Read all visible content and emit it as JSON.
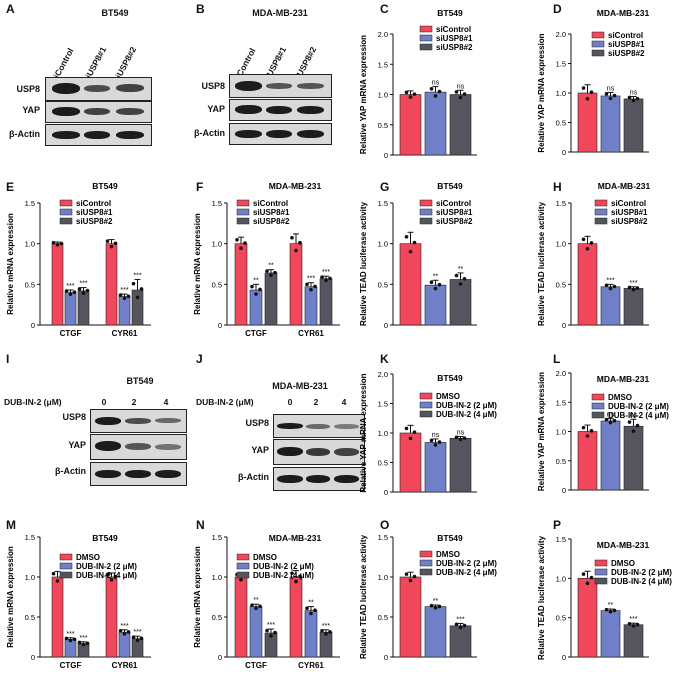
{
  "colors": {
    "red": "#f0475a",
    "blue": "#6f7fc8",
    "gray": "#55555f"
  },
  "letters": {
    "A": "A",
    "B": "B",
    "C": "C",
    "D": "D",
    "E": "E",
    "F": "F",
    "G": "G",
    "H": "H",
    "I": "I",
    "J": "J",
    "K": "K",
    "L": "L",
    "M": "M",
    "N": "N",
    "O": "O",
    "P": "P"
  },
  "blots": {
    "A": {
      "title": "BT549",
      "lanes": [
        "siControl",
        "siUSP8#1",
        "siUSP8#2"
      ],
      "rows": [
        "USP8",
        "YAP",
        "β-Actin"
      ]
    },
    "B": {
      "title": "MDA-MB-231",
      "lanes": [
        "siControl",
        "siUSP8#1",
        "siUSP8#2"
      ],
      "rows": [
        "USP8",
        "YAP",
        "β-Actin"
      ]
    },
    "I": {
      "title": "BT549",
      "treatment": "DUB-IN-2 (μM)",
      "doses": [
        "0",
        "2",
        "4"
      ],
      "rows": [
        "USP8",
        "YAP",
        "β-Actin"
      ]
    },
    "J": {
      "title": "MDA-MB-231",
      "treatment": "DUB-IN-2 (μM)",
      "doses": [
        "0",
        "2",
        "4"
      ],
      "rows": [
        "USP8",
        "YAP",
        "β-Actin"
      ]
    }
  },
  "chart_data": [
    {
      "id": "C",
      "type": "bar",
      "title": "BT549",
      "ylabel": "Relative YAP mRNA expression",
      "ylim": [
        0,
        2.0
      ],
      "yticks": [
        "0",
        "0.5",
        "1.0",
        "1.5",
        "2.0"
      ],
      "tick_values": [
        0,
        0.5,
        1.0,
        1.5,
        2.0
      ],
      "categories": [
        ""
      ],
      "series": [
        {
          "name": "siControl",
          "values": [
            1.0
          ],
          "errors": [
            0.06
          ],
          "sig": [
            ""
          ]
        },
        {
          "name": "siUSP8#1",
          "values": [
            1.04
          ],
          "errors": [
            0.09
          ],
          "sig": [
            "ns"
          ]
        },
        {
          "name": "siUSP8#2",
          "values": [
            1.0
          ],
          "errors": [
            0.07
          ],
          "sig": [
            "ns"
          ]
        }
      ]
    },
    {
      "id": "D",
      "type": "bar",
      "title": "MDA-MB-231",
      "ylabel": "Relative YAP mRNA expression",
      "ylim": [
        0,
        2.0
      ],
      "yticks": [
        "0",
        "0.5",
        "1.0",
        "1.5",
        "2.0"
      ],
      "tick_values": [
        0,
        0.5,
        1.0,
        1.5,
        2.0
      ],
      "categories": [
        ""
      ],
      "series": [
        {
          "name": "siControl",
          "values": [
            1.0
          ],
          "errors": [
            0.14
          ],
          "sig": [
            ""
          ]
        },
        {
          "name": "siUSP8#1",
          "values": [
            0.95
          ],
          "errors": [
            0.06
          ],
          "sig": [
            "ns"
          ]
        },
        {
          "name": "siUSP8#2",
          "values": [
            0.9
          ],
          "errors": [
            0.04
          ],
          "sig": [
            "ns"
          ]
        }
      ]
    },
    {
      "id": "E",
      "type": "bar",
      "title": "BT549",
      "ylabel": "Relative mRNA expression",
      "ylim": [
        0,
        1.5
      ],
      "yticks": [
        "0",
        "0.5",
        "1.0",
        "1.5"
      ],
      "tick_values": [
        0,
        0.5,
        1.0,
        1.5
      ],
      "categories": [
        "CTGF",
        "CYR61"
      ],
      "series": [
        {
          "name": "siControl",
          "values": [
            1.0,
            1.0
          ],
          "errors": [
            0.02,
            0.05
          ],
          "sig": [
            "",
            ""
          ]
        },
        {
          "name": "siUSP8#1",
          "values": [
            0.4,
            0.35
          ],
          "errors": [
            0.03,
            0.03
          ],
          "sig": [
            "***",
            "***"
          ]
        },
        {
          "name": "siUSP8#2",
          "values": [
            0.42,
            0.43
          ],
          "errors": [
            0.04,
            0.13
          ],
          "sig": [
            "***",
            "***"
          ]
        }
      ]
    },
    {
      "id": "F",
      "type": "bar",
      "title": "MDA-MB-231",
      "ylabel": "Relative mRNA expression",
      "ylim": [
        0,
        1.5
      ],
      "yticks": [
        "0",
        "0.5",
        "1.0",
        "1.5"
      ],
      "tick_values": [
        0,
        0.5,
        1.0,
        1.5
      ],
      "categories": [
        "CTGF",
        "CYR61"
      ],
      "series": [
        {
          "name": "siControl",
          "values": [
            1.0,
            1.0
          ],
          "errors": [
            0.08,
            0.12
          ],
          "sig": [
            "",
            ""
          ]
        },
        {
          "name": "siUSP8#1",
          "values": [
            0.43,
            0.47
          ],
          "errors": [
            0.07,
            0.05
          ],
          "sig": [
            "**",
            "***"
          ]
        },
        {
          "name": "siUSP8#2",
          "values": [
            0.64,
            0.57
          ],
          "errors": [
            0.04,
            0.03
          ],
          "sig": [
            "**",
            "***"
          ]
        }
      ]
    },
    {
      "id": "G",
      "type": "bar",
      "title": "BT549",
      "ylabel": "Relative TEAD luciferase activity",
      "ylim": [
        0,
        1.5
      ],
      "yticks": [
        "0",
        "0.5",
        "1.0",
        "1.5"
      ],
      "tick_values": [
        0,
        0.5,
        1.0,
        1.5
      ],
      "categories": [
        ""
      ],
      "series": [
        {
          "name": "siControl",
          "values": [
            1.0
          ],
          "errors": [
            0.14
          ],
          "sig": [
            ""
          ]
        },
        {
          "name": "siUSP8#1",
          "values": [
            0.49
          ],
          "errors": [
            0.06
          ],
          "sig": [
            "**"
          ]
        },
        {
          "name": "siUSP8#2",
          "values": [
            0.56
          ],
          "errors": [
            0.08
          ],
          "sig": [
            "**"
          ]
        }
      ]
    },
    {
      "id": "H",
      "type": "bar",
      "title": "MDA-MB-231",
      "ylabel": "Relative TEAD luciferase activity",
      "ylim": [
        0,
        1.5
      ],
      "yticks": [
        "0",
        "0.5",
        "1.0",
        "1.5"
      ],
      "tick_values": [
        0,
        0.5,
        1.0,
        1.5
      ],
      "categories": [
        ""
      ],
      "series": [
        {
          "name": "siControl",
          "values": [
            1.0
          ],
          "errors": [
            0.09
          ],
          "sig": [
            ""
          ]
        },
        {
          "name": "siUSP8#1",
          "values": [
            0.47
          ],
          "errors": [
            0.03
          ],
          "sig": [
            "***"
          ]
        },
        {
          "name": "siUSP8#2",
          "values": [
            0.45
          ],
          "errors": [
            0.02
          ],
          "sig": [
            "***"
          ]
        }
      ]
    },
    {
      "id": "K",
      "type": "bar",
      "title": "BT549",
      "ylabel": "Relative YAP mRNA expression",
      "ylim": [
        0,
        2.0
      ],
      "yticks": [
        "0",
        "0.5",
        "1.0",
        "1.5",
        "2.0"
      ],
      "tick_values": [
        0,
        0.5,
        1.0,
        1.5,
        2.0
      ],
      "categories": [
        ""
      ],
      "series": [
        {
          "name": "DMSO",
          "values": [
            1.0
          ],
          "errors": [
            0.13
          ],
          "sig": [
            ""
          ]
        },
        {
          "name": "DUB-IN-2 (2 μM)",
          "values": [
            0.84
          ],
          "errors": [
            0.06
          ],
          "sig": [
            "ns"
          ]
        },
        {
          "name": "DUB-IN-2 (4 μM)",
          "values": [
            0.91
          ],
          "errors": [
            0.03
          ],
          "sig": [
            "ns"
          ]
        }
      ]
    },
    {
      "id": "L",
      "type": "bar",
      "title": "MDA-MB-231",
      "ylabel": "Relative YAP mRNA expression",
      "ylim": [
        0,
        2.0
      ],
      "yticks": [
        "0",
        "0.5",
        "1.0",
        "1.5",
        "2.0"
      ],
      "tick_values": [
        0,
        0.5,
        1.0,
        1.5,
        2.0
      ],
      "categories": [
        ""
      ],
      "series": [
        {
          "name": "DMSO",
          "values": [
            1.0
          ],
          "errors": [
            0.11
          ],
          "sig": [
            ""
          ]
        },
        {
          "name": "DUB-IN-2 (2 μM)",
          "values": [
            1.18
          ],
          "errors": [
            0.04
          ],
          "sig": [
            "ns"
          ]
        },
        {
          "name": "DUB-IN-2 (4 μM)",
          "values": [
            1.09
          ],
          "errors": [
            0.12
          ],
          "sig": [
            "ns"
          ]
        }
      ]
    },
    {
      "id": "M",
      "type": "bar",
      "title": "BT549",
      "ylabel": "Relative mRNA expression",
      "ylim": [
        0,
        1.5
      ],
      "yticks": [
        "0",
        "0.5",
        "1.0",
        "1.5"
      ],
      "tick_values": [
        0,
        0.5,
        1.0,
        1.5
      ],
      "categories": [
        "CTGF",
        "CYR61"
      ],
      "series": [
        {
          "name": "DMSO",
          "values": [
            1.0,
            1.0
          ],
          "errors": [
            0.07,
            0.05
          ],
          "sig": [
            "",
            ""
          ]
        },
        {
          "name": "DUB-IN-2 (2 μM)",
          "values": [
            0.22,
            0.31
          ],
          "errors": [
            0.02,
            0.03
          ],
          "sig": [
            "***",
            "***"
          ]
        },
        {
          "name": "DUB-IN-2 (4 μM)",
          "values": [
            0.17,
            0.23
          ],
          "errors": [
            0.02,
            0.03
          ],
          "sig": [
            "***",
            "***"
          ]
        }
      ]
    },
    {
      "id": "N",
      "type": "bar",
      "title": "MDA-MB-231",
      "ylabel": "Relative mRNA expression",
      "ylim": [
        0,
        1.5
      ],
      "yticks": [
        "0",
        "0.5",
        "1.0",
        "1.5"
      ],
      "tick_values": [
        0,
        0.5,
        1.0,
        1.5
      ],
      "categories": [
        "CTGF",
        "CYR61"
      ],
      "series": [
        {
          "name": "DMSO",
          "values": [
            1.0,
            1.0
          ],
          "errors": [
            0.05,
            0.08
          ],
          "sig": [
            "",
            ""
          ]
        },
        {
          "name": "DUB-IN-2 (2 μM)",
          "values": [
            0.63,
            0.58
          ],
          "errors": [
            0.03,
            0.05
          ],
          "sig": [
            "**",
            "**"
          ]
        },
        {
          "name": "DUB-IN-2 (4 μM)",
          "values": [
            0.3,
            0.31
          ],
          "errors": [
            0.05,
            0.03
          ],
          "sig": [
            "***",
            "***"
          ]
        }
      ]
    },
    {
      "id": "O",
      "type": "bar",
      "title": "BT549",
      "ylabel": "Relative TEAD luciferase activity",
      "ylim": [
        0,
        1.5
      ],
      "yticks": [
        "0",
        "0.5",
        "1.0",
        "1.5"
      ],
      "tick_values": [
        0,
        0.5,
        1.0,
        1.5
      ],
      "categories": [
        ""
      ],
      "series": [
        {
          "name": "DMSO",
          "values": [
            1.0
          ],
          "errors": [
            0.06
          ],
          "sig": [
            ""
          ]
        },
        {
          "name": "DUB-IN-2 (2 μM)",
          "values": [
            0.63
          ],
          "errors": [
            0.02
          ],
          "sig": [
            "**"
          ]
        },
        {
          "name": "DUB-IN-2 (4 μM)",
          "values": [
            0.39
          ],
          "errors": [
            0.03
          ],
          "sig": [
            "***"
          ]
        }
      ]
    },
    {
      "id": "P",
      "type": "bar",
      "title": "MDA-MB-231",
      "ylabel": "Relative TEAD luciferase activity",
      "ylim": [
        0,
        1.5
      ],
      "yticks": [
        "0",
        "0.5",
        "1.0",
        "1.5"
      ],
      "tick_values": [
        0,
        0.5,
        1.0,
        1.5
      ],
      "categories": [
        ""
      ],
      "series": [
        {
          "name": "DMSO",
          "values": [
            1.0
          ],
          "errors": [
            0.09
          ],
          "sig": [
            ""
          ]
        },
        {
          "name": "DUB-IN-2 (2 μM)",
          "values": [
            0.59
          ],
          "errors": [
            0.02
          ],
          "sig": [
            "**"
          ]
        },
        {
          "name": "DUB-IN-2 (4 μM)",
          "values": [
            0.41
          ],
          "errors": [
            0.02
          ],
          "sig": [
            "***"
          ]
        }
      ]
    }
  ]
}
